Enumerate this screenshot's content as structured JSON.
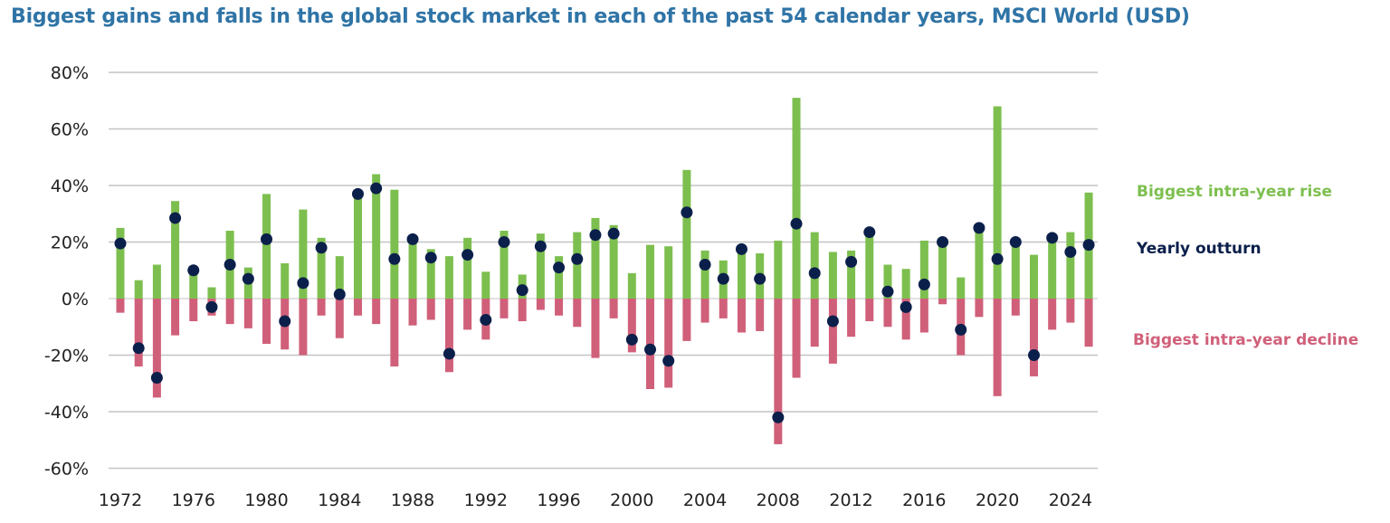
{
  "chart_data": {
    "type": "bar",
    "title": "Biggest gains and falls in the global stock market in each of the past 54 calendar years, MSCI World (USD)",
    "xlabel": "",
    "ylabel": "",
    "ylim": [
      -60,
      80
    ],
    "yticks": [
      80,
      60,
      40,
      20,
      0,
      -20,
      -40,
      -60
    ],
    "ytick_labels": [
      "80%",
      "60%",
      "40%",
      "20%",
      "0%",
      "-20%",
      "-40%",
      "-60%"
    ],
    "xticks": [
      1972,
      1976,
      1980,
      1984,
      1988,
      1992,
      1996,
      2000,
      2004,
      2008,
      2012,
      2016,
      2020,
      2024
    ],
    "xtick_labels": [
      "1972",
      "1976",
      "1980",
      "1984",
      "1988",
      "1992",
      "1996",
      "2000",
      "2004",
      "2008",
      "2012",
      "2016",
      "2020",
      "2024"
    ],
    "grid": true,
    "legend_placement": "right",
    "x": [
      1972,
      1973,
      1974,
      1975,
      1976,
      1977,
      1978,
      1979,
      1980,
      1981,
      1982,
      1983,
      1984,
      1985,
      1986,
      1987,
      1988,
      1989,
      1990,
      1991,
      1992,
      1993,
      1994,
      1995,
      1996,
      1997,
      1998,
      1999,
      2000,
      2001,
      2002,
      2003,
      2004,
      2005,
      2006,
      2007,
      2008,
      2009,
      2010,
      2011,
      2012,
      2013,
      2014,
      2015,
      2016,
      2017,
      2018,
      2019,
      2020,
      2021,
      2022,
      2023,
      2024,
      2025
    ],
    "series": [
      {
        "name": "Biggest intra-year rise",
        "color": "#7dbf4f",
        "kind": "bar",
        "values": [
          25,
          6.5,
          12,
          34.5,
          9.5,
          4,
          24,
          11,
          37,
          12.5,
          31.5,
          21.5,
          15,
          37,
          44,
          38.5,
          21.5,
          17.5,
          15,
          21.5,
          9.5,
          24,
          8.5,
          23,
          15,
          23.5,
          28.5,
          26,
          9,
          19,
          18.5,
          45.5,
          17,
          13.5,
          18,
          16,
          20.5,
          71,
          23.5,
          16.5,
          17,
          24,
          12,
          10.5,
          20.5,
          20,
          7.5,
          26.5,
          68,
          20,
          15.5,
          21.5,
          23.5,
          37.5
        ]
      },
      {
        "name": "Yearly outturn",
        "color": "#0b1f4b",
        "kind": "dot",
        "values": [
          19.5,
          -17.5,
          -28,
          28.5,
          10,
          -3,
          12,
          7,
          21,
          -8,
          5.5,
          18,
          1.5,
          37,
          39,
          14,
          21,
          14.5,
          -19.5,
          15.5,
          -7.5,
          20,
          3,
          18.5,
          11,
          14,
          22.5,
          23,
          -14.5,
          -18,
          -22,
          30.5,
          12,
          7,
          17.5,
          7,
          -42,
          26.5,
          9,
          -8,
          13,
          23.5,
          2.5,
          -3,
          5,
          20,
          -11,
          25,
          14,
          20,
          -20,
          21.5,
          16.5,
          19
        ]
      },
      {
        "name": "Biggest intra-year decline",
        "color": "#d0607a",
        "kind": "bar",
        "values": [
          -5,
          -24,
          -35,
          -13,
          -8,
          -6,
          -9,
          -10.5,
          -16,
          -18,
          -20,
          -6,
          -14,
          -6,
          -9,
          -24,
          -9.5,
          -7.5,
          -26,
          -11,
          -14.5,
          -7,
          -8,
          -4,
          -6,
          -10,
          -21,
          -7,
          -19,
          -32,
          -31.5,
          -15,
          -8.5,
          -7,
          -12,
          -11.5,
          -51.5,
          -28,
          -17,
          -23,
          -13.5,
          -8,
          -10,
          -14.5,
          -12,
          -2,
          -20,
          -6.5,
          -34.5,
          -6,
          -27.5,
          -11,
          -8.5,
          -17
        ]
      }
    ]
  }
}
